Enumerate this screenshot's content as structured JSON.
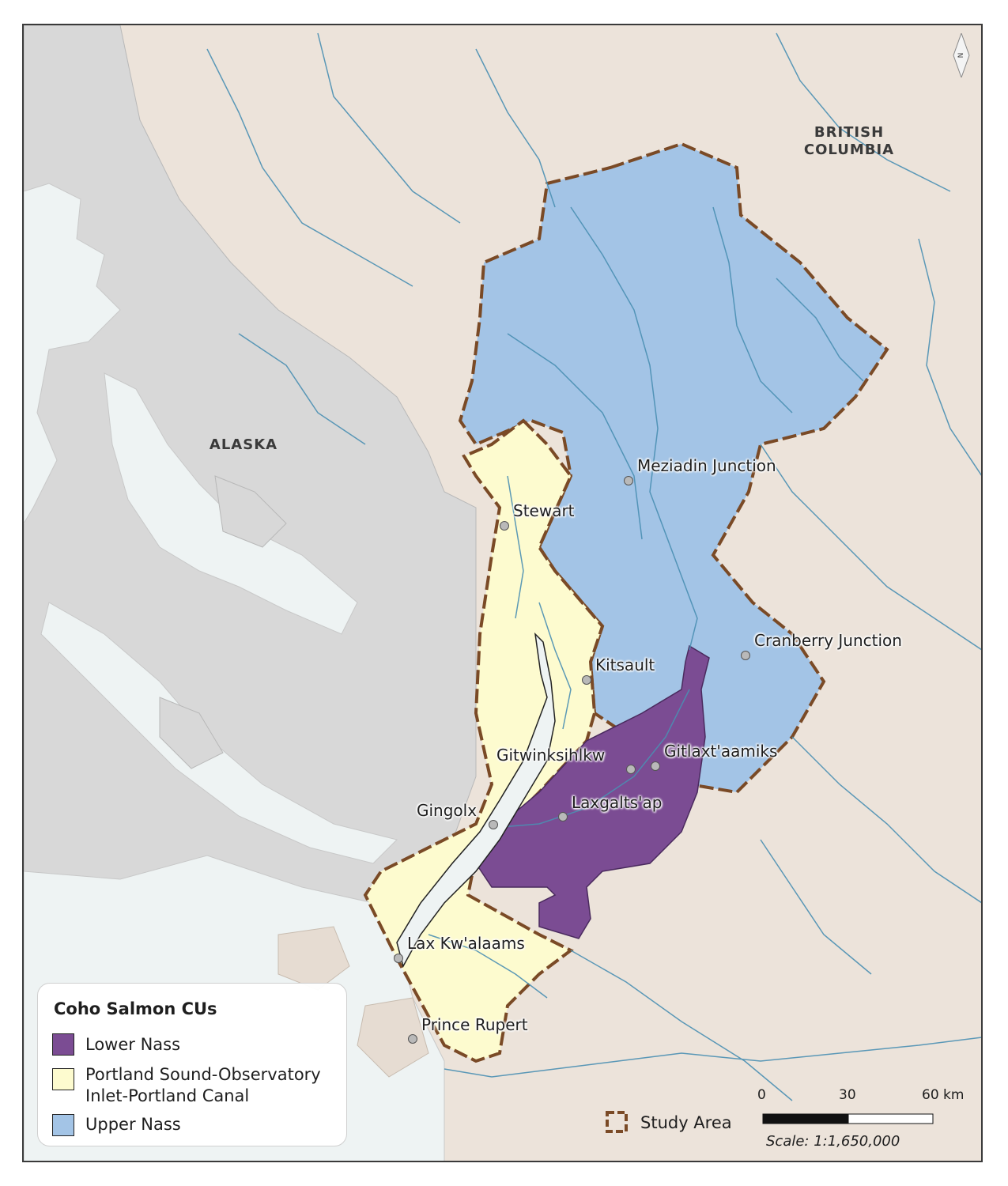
{
  "map": {
    "region_labels": [
      {
        "id": "british-columbia",
        "lines": [
          "BRITISH",
          "COLUMBIA"
        ]
      },
      {
        "id": "alaska",
        "lines": [
          "ALASKA"
        ]
      }
    ],
    "places": [
      {
        "name": "Meziadin Junction"
      },
      {
        "name": "Stewart"
      },
      {
        "name": "Cranberry Junction"
      },
      {
        "name": "Kitsault"
      },
      {
        "name": "Gitwinksihlkw"
      },
      {
        "name": "Gitlaxt'aamiks"
      },
      {
        "name": "Laxgalts'ap"
      },
      {
        "name": "Gingolx"
      },
      {
        "name": "Lax Kw'alaams"
      },
      {
        "name": "Prince Rupert"
      }
    ],
    "colors": {
      "land": "#ece3da",
      "alaska": "#d8d8d8",
      "water": "#eef3f3",
      "rivers": "#4a8fb3",
      "upper_nass": "#a3c4e6",
      "portland": "#fdfbcf",
      "lower_nass": "#7b4c93",
      "study_area": "#7a4a26"
    }
  },
  "legend": {
    "title": "Coho Salmon CUs",
    "items": [
      {
        "label_lines": [
          "Lower Nass"
        ],
        "color": "#7b4c93"
      },
      {
        "label_lines": [
          "Portland Sound-Observatory",
          "Inlet-Portland Canal"
        ],
        "color": "#fdfbcf"
      },
      {
        "label_lines": [
          "Upper Nass"
        ],
        "color": "#a3c4e6"
      }
    ],
    "study_area_label": "Study Area"
  },
  "scale": {
    "ticks": [
      "0",
      "30",
      "60 km"
    ],
    "text": "Scale: 1:1,650,000"
  },
  "north_arrow": {
    "letter": "N",
    "icon": "north-arrow-icon"
  }
}
